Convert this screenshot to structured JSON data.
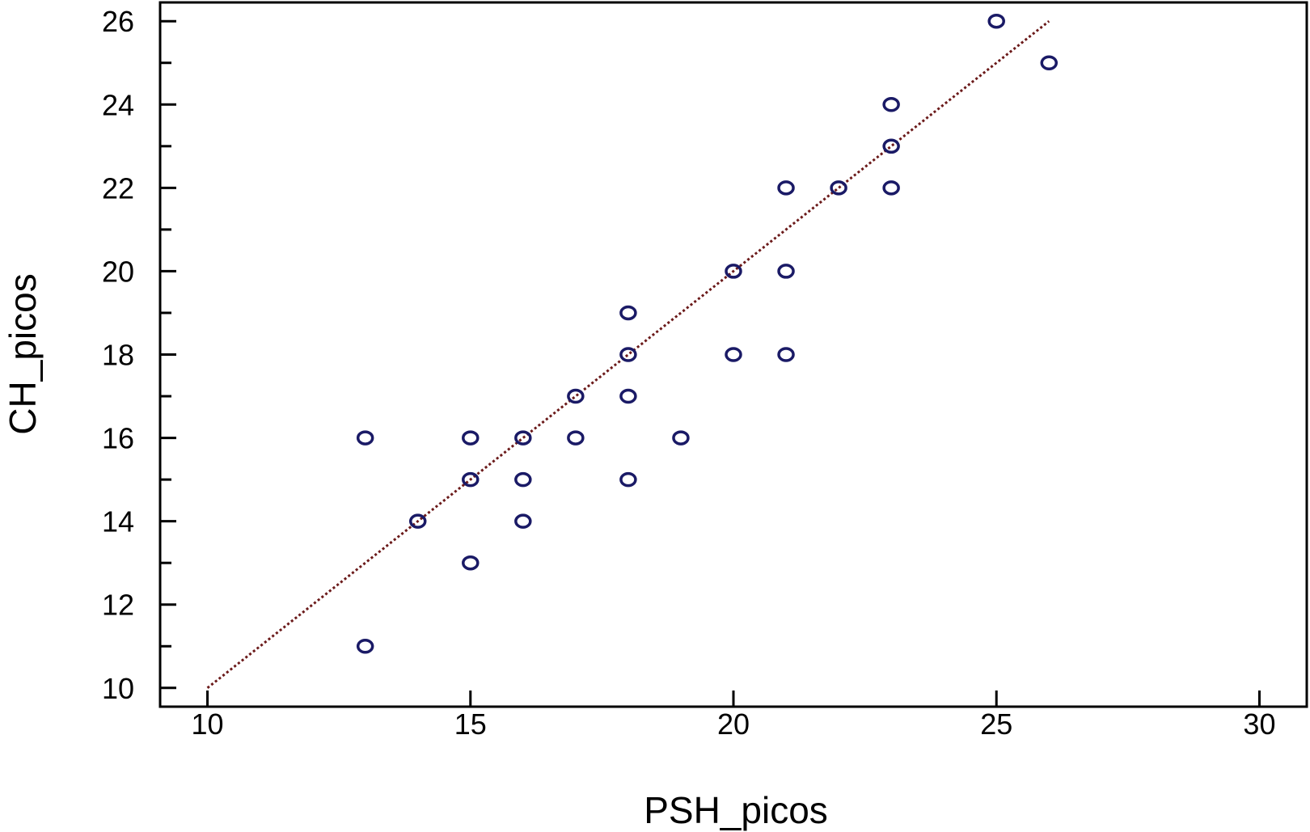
{
  "chart_data": {
    "type": "scatter",
    "title": "",
    "xlabel": "PSH_picos",
    "ylabel": "CH_picos",
    "xlim": [
      9.1,
      30.9
    ],
    "ylim": [
      9.55,
      26.45
    ],
    "x_ticks": [
      10,
      15,
      20,
      25,
      30
    ],
    "y_ticks": [
      10,
      12,
      14,
      16,
      18,
      20,
      22,
      24,
      26
    ],
    "y_minor_ticks": [
      11,
      13,
      15,
      17,
      19,
      21,
      23,
      25
    ],
    "grid": false,
    "legend": "none",
    "marker": "open-circle",
    "marker_color": "#1a1a66",
    "series": [
      {
        "points": [
          {
            "x": 13,
            "y": 16
          },
          {
            "x": 13,
            "y": 11
          },
          {
            "x": 14,
            "y": 14
          },
          {
            "x": 15,
            "y": 16
          },
          {
            "x": 15,
            "y": 15
          },
          {
            "x": 15,
            "y": 13
          },
          {
            "x": 16,
            "y": 16
          },
          {
            "x": 16,
            "y": 15
          },
          {
            "x": 16,
            "y": 14
          },
          {
            "x": 17,
            "y": 17
          },
          {
            "x": 17,
            "y": 16
          },
          {
            "x": 18,
            "y": 19
          },
          {
            "x": 18,
            "y": 18
          },
          {
            "x": 18,
            "y": 17
          },
          {
            "x": 18,
            "y": 15
          },
          {
            "x": 19,
            "y": 16
          },
          {
            "x": 20,
            "y": 20
          },
          {
            "x": 20,
            "y": 18
          },
          {
            "x": 21,
            "y": 22
          },
          {
            "x": 21,
            "y": 20
          },
          {
            "x": 21,
            "y": 18
          },
          {
            "x": 22,
            "y": 22
          },
          {
            "x": 23,
            "y": 24
          },
          {
            "x": 23,
            "y": 23
          },
          {
            "x": 23,
            "y": 22
          },
          {
            "x": 25,
            "y": 26
          },
          {
            "x": 26,
            "y": 25
          }
        ]
      }
    ],
    "reference_line": {
      "style": "dotted",
      "color": "#6b1a1a",
      "from": {
        "x": 10,
        "y": 10
      },
      "to": {
        "x": 26,
        "y": 26
      }
    }
  }
}
